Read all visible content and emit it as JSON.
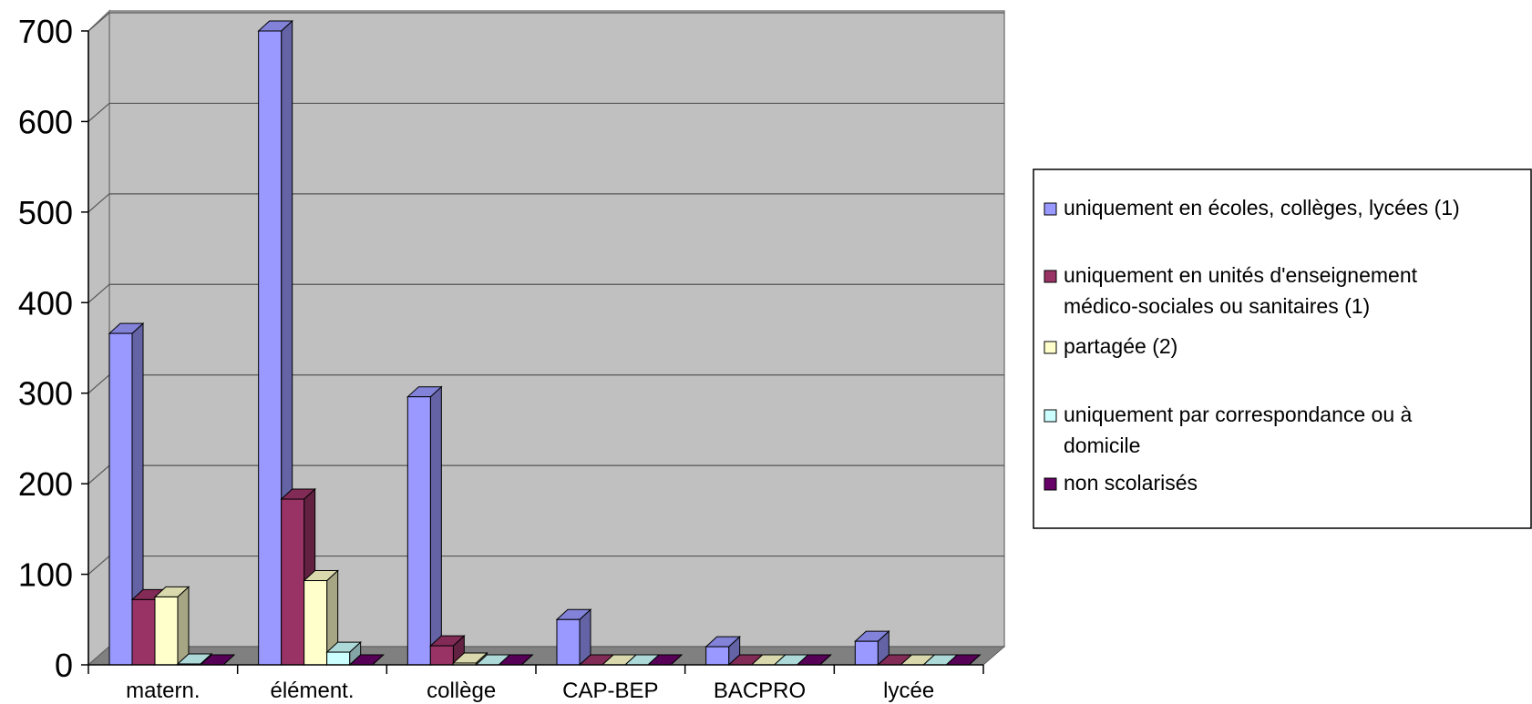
{
  "chart_data": {
    "type": "bar",
    "categories": [
      "matern.",
      "élément.",
      "collège",
      "CAP-BEP",
      "BACPRO",
      "lycée"
    ],
    "y_ticks": [
      "0",
      "100",
      "200",
      "300",
      "400",
      "500",
      "600",
      "700"
    ],
    "ylim": [
      0,
      700
    ],
    "grid": true,
    "legend_position": "right",
    "series": [
      {
        "name": "uniquement en écoles, collèges, lycées (1)",
        "legend_lines": [
          "uniquement en écoles, collèges, lycées (1)"
        ],
        "color": "#9999ff",
        "values": [
          366,
          700,
          296,
          50,
          20,
          26
        ]
      },
      {
        "name": "uniquement en unités d'enseignement médico-sociales ou sanitaires (1)",
        "legend_lines": [
          "uniquement en unités d'enseignement",
          "médico-sociales ou sanitaires (1)"
        ],
        "color": "#993366",
        "values": [
          72,
          183,
          21,
          0,
          0,
          0
        ]
      },
      {
        "name": "partagée (2)",
        "legend_lines": [
          "partagée (2)"
        ],
        "color": "#ffffcc",
        "values": [
          75,
          93,
          2,
          0,
          0,
          0
        ]
      },
      {
        "name": "uniquement par correspondance ou à domicile",
        "legend_lines": [
          "uniquement par correspondance ou à",
          "domicile"
        ],
        "color": "#ccffff",
        "values": [
          1,
          14,
          0,
          0,
          0,
          0
        ]
      },
      {
        "name": "non scolarisés",
        "legend_lines": [
          "non scolarisés"
        ],
        "color": "#660066",
        "values": [
          0,
          0,
          0,
          0,
          0,
          0
        ]
      }
    ]
  }
}
